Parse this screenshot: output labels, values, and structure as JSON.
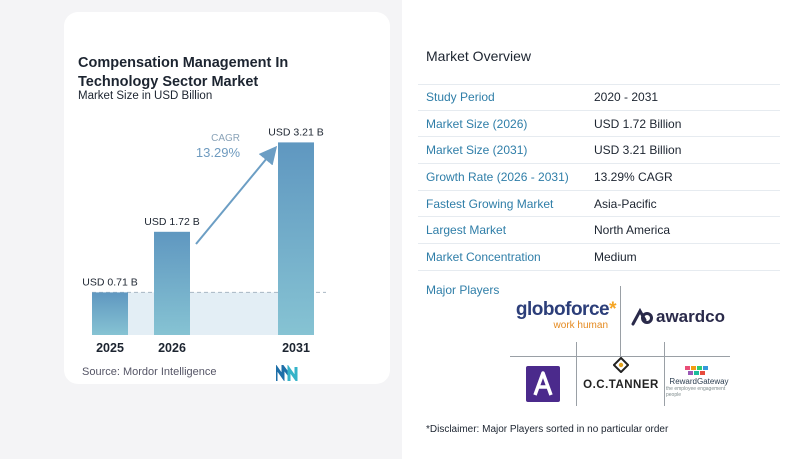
{
  "chart_data": {
    "type": "bar",
    "title": "Compensation Management In Technology Sector Market",
    "subtitle": "Market Size in USD Billion",
    "categories": [
      "2025",
      "2026",
      "2031"
    ],
    "values": [
      0.71,
      1.72,
      3.21
    ],
    "data_labels": [
      "USD 0.71 B",
      "USD 1.72 B",
      "USD 3.21 B"
    ],
    "cagr_label": "CAGR",
    "cagr_value": "13.29%",
    "ylim": [
      0,
      3.4
    ],
    "colors": {
      "bar_top": "#5f97c0",
      "bar_bottom": "#86c3d3",
      "arrow": "#6c9ec4",
      "cagr": "#6f9bbf",
      "baseline_fill": "#e3eef5"
    }
  },
  "source": "Source: Mordor Intelligence",
  "overview": {
    "title": "Market Overview",
    "rows": [
      {
        "label": "Study Period",
        "value": "2020 - 2031"
      },
      {
        "label": "Market Size (2026)",
        "value": "USD 1.72 Billion"
      },
      {
        "label": "Market Size (2031)",
        "value": "USD 3.21 Billion"
      },
      {
        "label": "Growth Rate (2026 - 2031)",
        "value": "13.29% CAGR"
      },
      {
        "label": "Fastest Growing Market",
        "value": "Asia-Pacific"
      },
      {
        "label": "Largest Market",
        "value": "North America"
      },
      {
        "label": "Market Concentration",
        "value": "Medium"
      }
    ]
  },
  "players": {
    "label": "Major Players",
    "globoforce": {
      "name": "globoforce",
      "tag": "work human"
    },
    "awardco": "awardco",
    "octanner": "O.C.TANNER",
    "rewardgateway": {
      "name": "RewardGateway",
      "tag": "the employee engagement people"
    }
  },
  "disclaimer": "*Disclaimer: Major Players sorted in no particular order"
}
